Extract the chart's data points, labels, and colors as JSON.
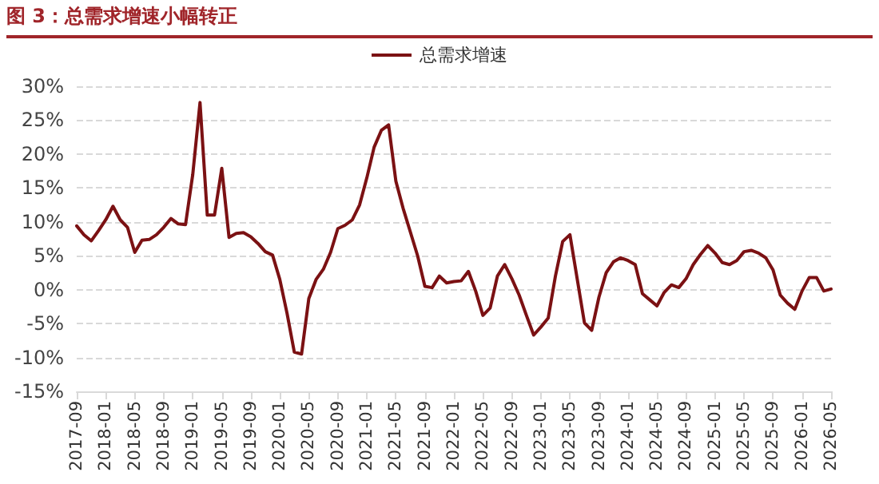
{
  "chart_data": {
    "type": "line",
    "title": "图 3：总需求增速小幅转正",
    "categories": [
      "2017-09",
      null,
      null,
      null,
      "2018-01",
      null,
      null,
      null,
      "2018-05",
      null,
      null,
      null,
      "2018-09",
      null,
      null,
      null,
      "2019-01",
      null,
      null,
      null,
      "2019-05",
      null,
      null,
      null,
      "2019-09",
      null,
      null,
      null,
      "2020-01",
      null,
      null,
      null,
      "2020-05",
      null,
      null,
      null,
      "2020-09",
      null,
      null,
      null,
      "2021-01",
      null,
      null,
      null,
      "2021-05",
      null,
      null,
      null,
      "2021-09",
      null,
      null,
      null,
      "2022-01",
      null,
      null,
      null,
      "2022-05",
      null,
      null,
      null,
      "2022-09",
      null,
      null,
      null,
      "2023-01",
      null,
      null,
      null,
      "2023-05",
      null,
      null,
      null,
      "2023-09",
      null,
      null,
      null,
      "2024-01",
      null,
      null,
      null,
      "2024-05",
      null,
      null,
      null,
      "2024-09",
      null,
      null,
      null,
      "2025-01",
      null,
      null,
      null,
      "2025-05",
      null,
      null,
      null,
      "2025-09",
      null,
      null,
      null,
      "2026-01",
      null,
      null,
      null,
      "2026-05"
    ],
    "series": [
      {
        "name": "总需求增速",
        "color": "#7b1113",
        "values": [
          9.4,
          8.1,
          7.2,
          8.7,
          10.3,
          12.3,
          10.3,
          9.2,
          5.5,
          7.3,
          7.4,
          8.1,
          9.2,
          10.5,
          9.7,
          9.6,
          17,
          27.6,
          11,
          11,
          17.9,
          7.7,
          8.3,
          8.4,
          7.8,
          6.8,
          5.6,
          5.1,
          1.5,
          -3.5,
          -9.2,
          -9.5,
          -1.3,
          1.5,
          3,
          5.5,
          9,
          9.5,
          10.3,
          12.5,
          16.5,
          21,
          23.5,
          24.3,
          16,
          12,
          8.5,
          5,
          0.5,
          0.3,
          2,
          1,
          1.2,
          1.3,
          2.7,
          -0.2,
          -3.8,
          -2.7,
          2,
          3.7,
          1.6,
          -0.8,
          -3.8,
          -6.7,
          -5.5,
          -4.2,
          2,
          7.1,
          8.1,
          1.6,
          -4.9,
          -6,
          -1.1,
          2.5,
          4.1,
          4.7,
          4.3,
          3.7,
          -0.6,
          -1.5,
          -2.4,
          -0.4,
          0.7,
          0.3,
          1.6,
          3.7,
          5.2,
          6.5,
          5.4,
          4,
          3.7,
          4.3,
          5.6,
          5.8,
          5.4,
          4.7,
          2.9,
          -0.8,
          -2,
          -2.9,
          -0.2,
          1.8,
          1.8,
          -0.2,
          0.1
        ]
      }
    ],
    "ylim": [
      -15,
      30
    ],
    "yticks": [
      {
        "value": -15,
        "label": "-15%"
      },
      {
        "value": -10,
        "label": "-10%"
      },
      {
        "value": -5,
        "label": "-5%"
      },
      {
        "value": 0,
        "label": "0%"
      },
      {
        "value": 5,
        "label": "5%"
      },
      {
        "value": 10,
        "label": "10%"
      },
      {
        "value": 15,
        "label": "15%"
      },
      {
        "value": 20,
        "label": "20%"
      },
      {
        "value": 25,
        "label": "25%"
      },
      {
        "value": 30,
        "label": "30%"
      }
    ],
    "grid": "y",
    "legend": "top",
    "marker": "none",
    "line_style": "solid"
  }
}
